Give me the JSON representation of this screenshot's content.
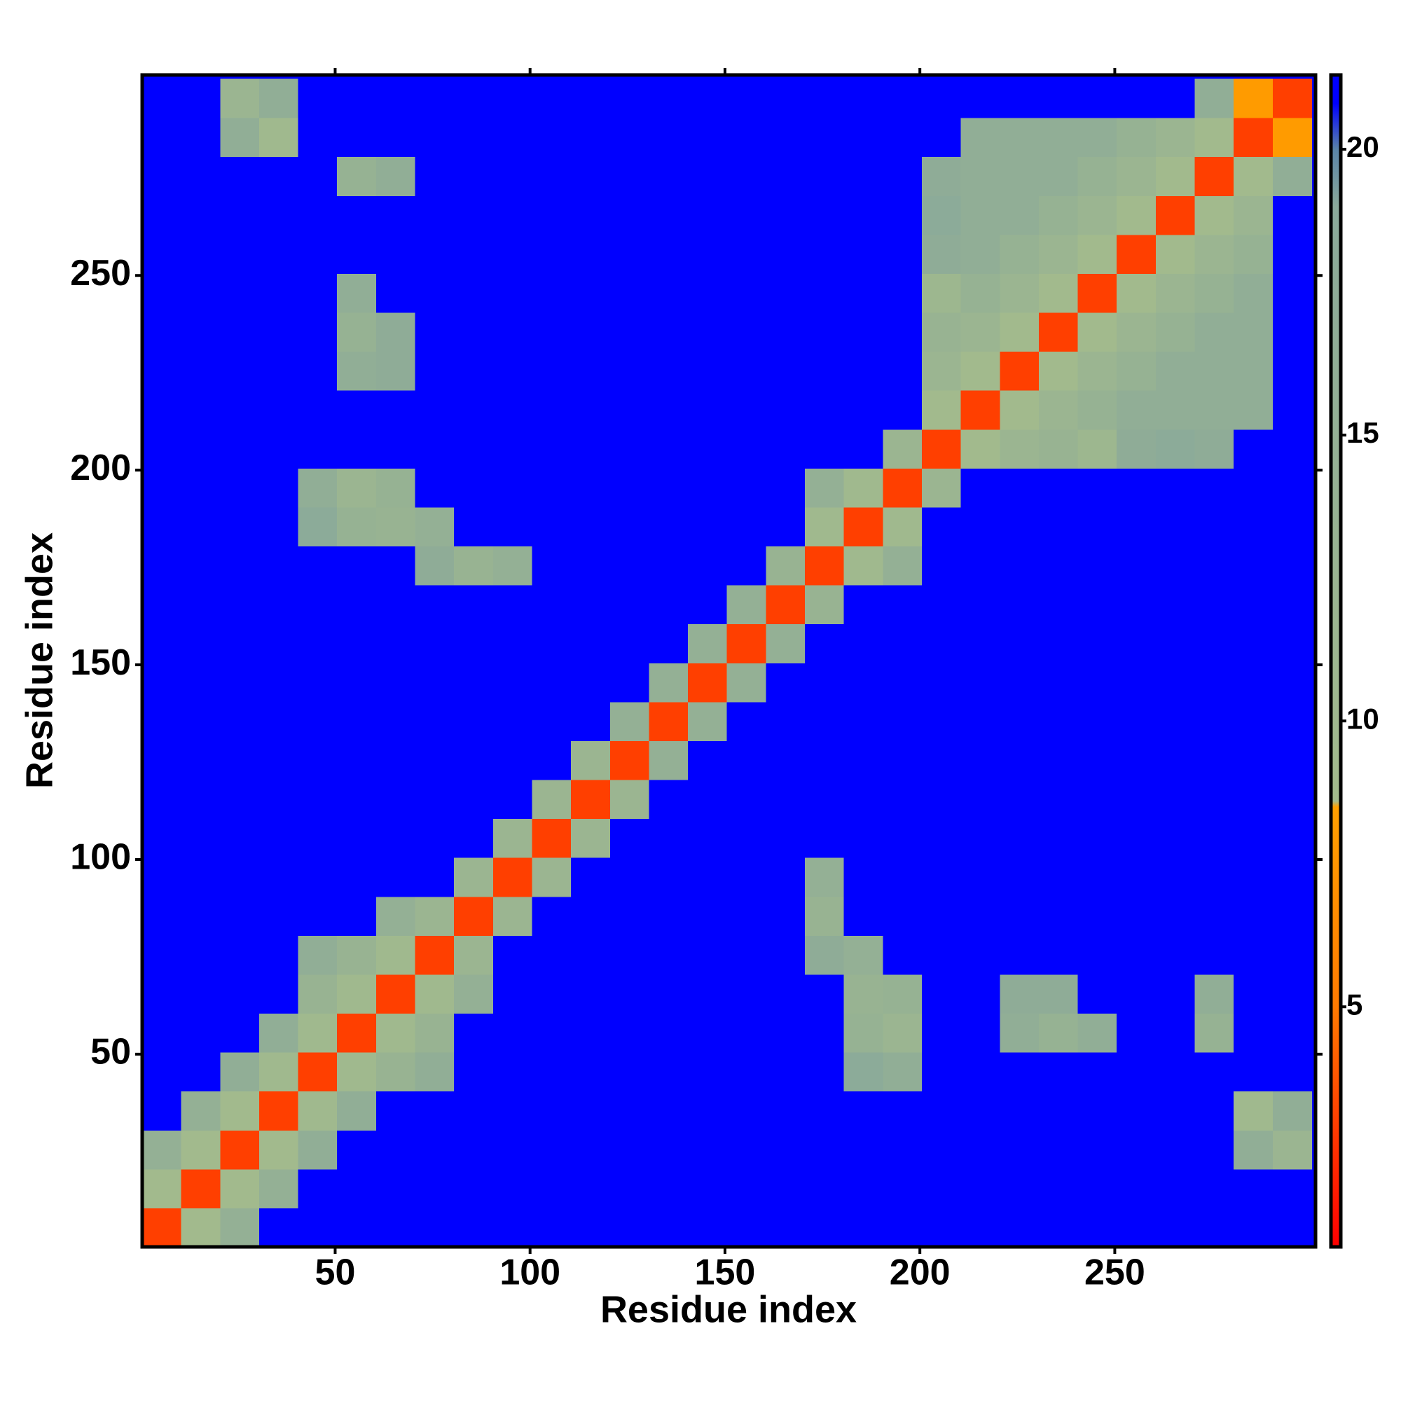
{
  "chart_data": {
    "type": "heatmap",
    "x_label": "Residue index",
    "y_label": "Residue index",
    "xlim": [
      0.5,
      301.5
    ],
    "ylim": [
      0.5,
      301.5
    ],
    "xticks": [
      50,
      100,
      150,
      200,
      250
    ],
    "yticks": [
      50,
      100,
      150,
      200,
      250
    ],
    "xbins": [
      0.5,
      10.5,
      20.5,
      30.5,
      40.5,
      50.5,
      60.5,
      70.5,
      80.5,
      90.5,
      100.5,
      110.5,
      120.5,
      130.5,
      140.5,
      150.5,
      160.5,
      170.5,
      180.5,
      190.5,
      200.5,
      210.5,
      220.5,
      230.5,
      240.5,
      250.5,
      260.5,
      270.5,
      280.5,
      290.5,
      300.5
    ],
    "ybins": [
      0.5,
      10.5,
      20.5,
      30.5,
      40.5,
      50.5,
      60.5,
      70.5,
      80.5,
      90.5,
      100.5,
      110.5,
      120.5,
      130.5,
      140.5,
      150.5,
      160.5,
      170.5,
      180.5,
      190.5,
      200.5,
      210.5,
      220.5,
      230.5,
      240.5,
      250.5,
      260.5,
      270.5,
      280.5,
      290.5,
      300.5
    ],
    "z": [
      [
        3,
        9,
        15,
        21,
        21,
        21,
        21,
        21,
        21,
        21,
        21,
        21,
        21,
        21,
        21,
        21,
        21,
        21,
        21,
        21,
        21,
        21,
        21,
        21,
        21,
        21,
        21,
        21,
        21,
        21
      ],
      [
        9,
        3,
        9,
        15,
        21,
        21,
        21,
        21,
        21,
        21,
        21,
        21,
        21,
        21,
        21,
        21,
        21,
        21,
        21,
        21,
        21,
        21,
        21,
        21,
        21,
        21,
        21,
        21,
        21,
        21
      ],
      [
        15,
        9,
        3,
        9,
        16,
        21,
        21,
        21,
        21,
        21,
        21,
        21,
        21,
        21,
        21,
        21,
        21,
        21,
        21,
        21,
        21,
        21,
        21,
        21,
        21,
        21,
        21,
        21,
        16,
        12
      ],
      [
        21,
        15,
        9,
        3,
        10,
        16,
        21,
        21,
        21,
        21,
        21,
        21,
        21,
        21,
        21,
        21,
        21,
        21,
        21,
        21,
        21,
        21,
        21,
        21,
        21,
        21,
        21,
        21,
        10,
        16
      ],
      [
        21,
        21,
        16,
        10,
        3,
        10,
        13,
        16,
        21,
        21,
        21,
        21,
        21,
        21,
        21,
        21,
        21,
        21,
        18,
        16,
        21,
        21,
        21,
        21,
        21,
        21,
        21,
        21,
        21,
        21
      ],
      [
        21,
        21,
        21,
        16,
        10,
        3,
        10,
        13,
        21,
        21,
        21,
        21,
        21,
        21,
        21,
        21,
        21,
        21,
        14,
        12,
        21,
        21,
        16,
        14,
        16,
        21,
        21,
        14,
        21,
        21
      ],
      [
        21,
        21,
        21,
        21,
        13,
        10,
        3,
        10,
        15,
        21,
        21,
        21,
        21,
        21,
        21,
        21,
        21,
        21,
        13,
        14,
        21,
        21,
        17,
        17,
        21,
        21,
        21,
        16,
        21,
        21
      ],
      [
        21,
        21,
        21,
        21,
        16,
        13,
        10,
        3,
        12,
        21,
        21,
        21,
        21,
        21,
        21,
        21,
        21,
        17,
        15,
        21,
        21,
        21,
        21,
        21,
        21,
        21,
        21,
        21,
        21,
        21
      ],
      [
        21,
        21,
        21,
        21,
        21,
        21,
        15,
        12,
        3,
        12,
        21,
        21,
        21,
        21,
        21,
        21,
        21,
        13,
        21,
        21,
        21,
        21,
        21,
        21,
        21,
        21,
        21,
        21,
        21,
        21
      ],
      [
        21,
        21,
        21,
        21,
        21,
        21,
        21,
        21,
        12,
        3,
        12,
        21,
        21,
        21,
        21,
        21,
        21,
        15,
        21,
        21,
        21,
        21,
        21,
        21,
        21,
        21,
        21,
        21,
        21,
        21
      ],
      [
        21,
        21,
        21,
        21,
        21,
        21,
        21,
        21,
        21,
        12,
        3,
        12,
        21,
        21,
        21,
        21,
        21,
        21,
        21,
        21,
        21,
        21,
        21,
        21,
        21,
        21,
        21,
        21,
        21,
        21
      ],
      [
        21,
        21,
        21,
        21,
        21,
        21,
        21,
        21,
        21,
        21,
        12,
        3,
        12,
        21,
        21,
        21,
        21,
        21,
        21,
        21,
        21,
        21,
        21,
        21,
        21,
        21,
        21,
        21,
        21,
        21
      ],
      [
        21,
        21,
        21,
        21,
        21,
        21,
        21,
        21,
        21,
        21,
        21,
        12,
        3,
        15,
        21,
        21,
        21,
        21,
        21,
        21,
        21,
        21,
        21,
        21,
        21,
        21,
        21,
        21,
        21,
        21
      ],
      [
        21,
        21,
        21,
        21,
        21,
        21,
        21,
        21,
        21,
        21,
        21,
        21,
        15,
        3,
        15,
        21,
        21,
        21,
        21,
        21,
        21,
        21,
        21,
        21,
        21,
        21,
        21,
        21,
        21,
        21
      ],
      [
        21,
        21,
        21,
        21,
        21,
        21,
        21,
        21,
        21,
        21,
        21,
        21,
        21,
        15,
        3,
        15,
        21,
        21,
        21,
        21,
        21,
        21,
        21,
        21,
        21,
        21,
        21,
        21,
        21,
        21
      ],
      [
        21,
        21,
        21,
        21,
        21,
        21,
        21,
        21,
        21,
        21,
        21,
        21,
        21,
        21,
        15,
        3,
        15,
        21,
        21,
        21,
        21,
        21,
        21,
        21,
        21,
        21,
        21,
        21,
        21,
        21
      ],
      [
        21,
        21,
        21,
        21,
        21,
        21,
        21,
        21,
        21,
        21,
        21,
        21,
        21,
        21,
        21,
        15,
        3,
        13,
        21,
        21,
        21,
        21,
        21,
        21,
        21,
        21,
        21,
        21,
        21,
        21
      ],
      [
        21,
        21,
        21,
        21,
        21,
        21,
        21,
        17,
        13,
        15,
        21,
        21,
        21,
        21,
        21,
        21,
        13,
        3,
        10,
        15,
        21,
        21,
        21,
        21,
        21,
        21,
        21,
        21,
        21,
        21
      ],
      [
        21,
        21,
        21,
        21,
        18,
        14,
        13,
        15,
        21,
        21,
        21,
        21,
        21,
        21,
        21,
        21,
        21,
        10,
        3,
        10,
        21,
        21,
        21,
        21,
        21,
        21,
        21,
        21,
        21,
        21
      ],
      [
        21,
        21,
        21,
        21,
        16,
        12,
        14,
        21,
        21,
        21,
        21,
        21,
        21,
        21,
        21,
        21,
        21,
        15,
        10,
        3,
        12,
        21,
        21,
        21,
        21,
        21,
        21,
        21,
        21,
        21
      ],
      [
        21,
        21,
        21,
        21,
        21,
        21,
        21,
        21,
        21,
        21,
        21,
        21,
        21,
        21,
        21,
        21,
        21,
        21,
        21,
        12,
        3,
        9,
        12,
        13,
        11,
        17,
        18,
        17,
        21,
        21
      ],
      [
        21,
        21,
        21,
        21,
        21,
        21,
        21,
        21,
        21,
        21,
        21,
        21,
        21,
        21,
        21,
        21,
        21,
        21,
        21,
        21,
        9,
        3,
        9,
        12,
        14,
        16,
        16,
        16,
        16,
        21
      ],
      [
        21,
        21,
        21,
        21,
        21,
        16,
        17,
        21,
        21,
        21,
        21,
        21,
        21,
        21,
        21,
        21,
        21,
        21,
        21,
        21,
        12,
        9,
        3,
        9,
        12,
        14,
        16,
        16,
        16,
        21
      ],
      [
        21,
        21,
        21,
        21,
        21,
        14,
        17,
        21,
        21,
        21,
        21,
        21,
        21,
        21,
        21,
        21,
        21,
        21,
        21,
        21,
        13,
        12,
        9,
        3,
        9,
        12,
        14,
        16,
        16,
        21
      ],
      [
        21,
        21,
        21,
        21,
        21,
        16,
        21,
        21,
        21,
        21,
        21,
        21,
        21,
        21,
        21,
        21,
        21,
        21,
        21,
        21,
        11,
        14,
        12,
        9,
        3,
        9,
        12,
        14,
        16,
        21
      ],
      [
        21,
        21,
        21,
        21,
        21,
        21,
        21,
        21,
        21,
        21,
        21,
        21,
        21,
        21,
        21,
        21,
        21,
        21,
        21,
        21,
        17,
        16,
        14,
        12,
        9,
        3,
        9,
        12,
        14,
        21
      ],
      [
        21,
        21,
        21,
        21,
        21,
        21,
        21,
        21,
        21,
        21,
        21,
        21,
        21,
        21,
        21,
        21,
        21,
        21,
        21,
        21,
        18,
        16,
        16,
        14,
        12,
        9,
        3,
        9,
        12,
        21
      ],
      [
        21,
        21,
        21,
        21,
        21,
        14,
        16,
        21,
        21,
        21,
        21,
        21,
        21,
        21,
        21,
        21,
        21,
        21,
        21,
        21,
        17,
        16,
        16,
        16,
        14,
        12,
        9,
        3,
        9,
        16
      ],
      [
        21,
        21,
        16,
        10,
        21,
        21,
        21,
        21,
        21,
        21,
        21,
        21,
        21,
        21,
        21,
        21,
        21,
        21,
        21,
        21,
        21,
        16,
        16,
        16,
        16,
        14,
        12,
        9,
        3,
        8
      ],
      [
        21,
        21,
        12,
        16,
        21,
        21,
        21,
        21,
        21,
        21,
        21,
        21,
        21,
        21,
        21,
        21,
        21,
        21,
        21,
        21,
        21,
        21,
        21,
        21,
        21,
        21,
        21,
        16,
        8,
        3
      ]
    ],
    "zlim": [
      0.8,
      21.3
    ],
    "colorbar_ticks": [
      5,
      10,
      15,
      20
    ],
    "colorscale": [
      [
        0.8,
        "#ff0000"
      ],
      [
        2.5,
        "#ff3000"
      ],
      [
        5,
        "#ff7a00"
      ],
      [
        8.5,
        "#ffa000"
      ],
      [
        8.6,
        "#a3bb8c"
      ],
      [
        19,
        "#8aa99a"
      ],
      [
        20,
        "#5a84a8"
      ],
      [
        20.8,
        "#0000ff"
      ],
      [
        21.3,
        "#0000ff"
      ]
    ]
  }
}
